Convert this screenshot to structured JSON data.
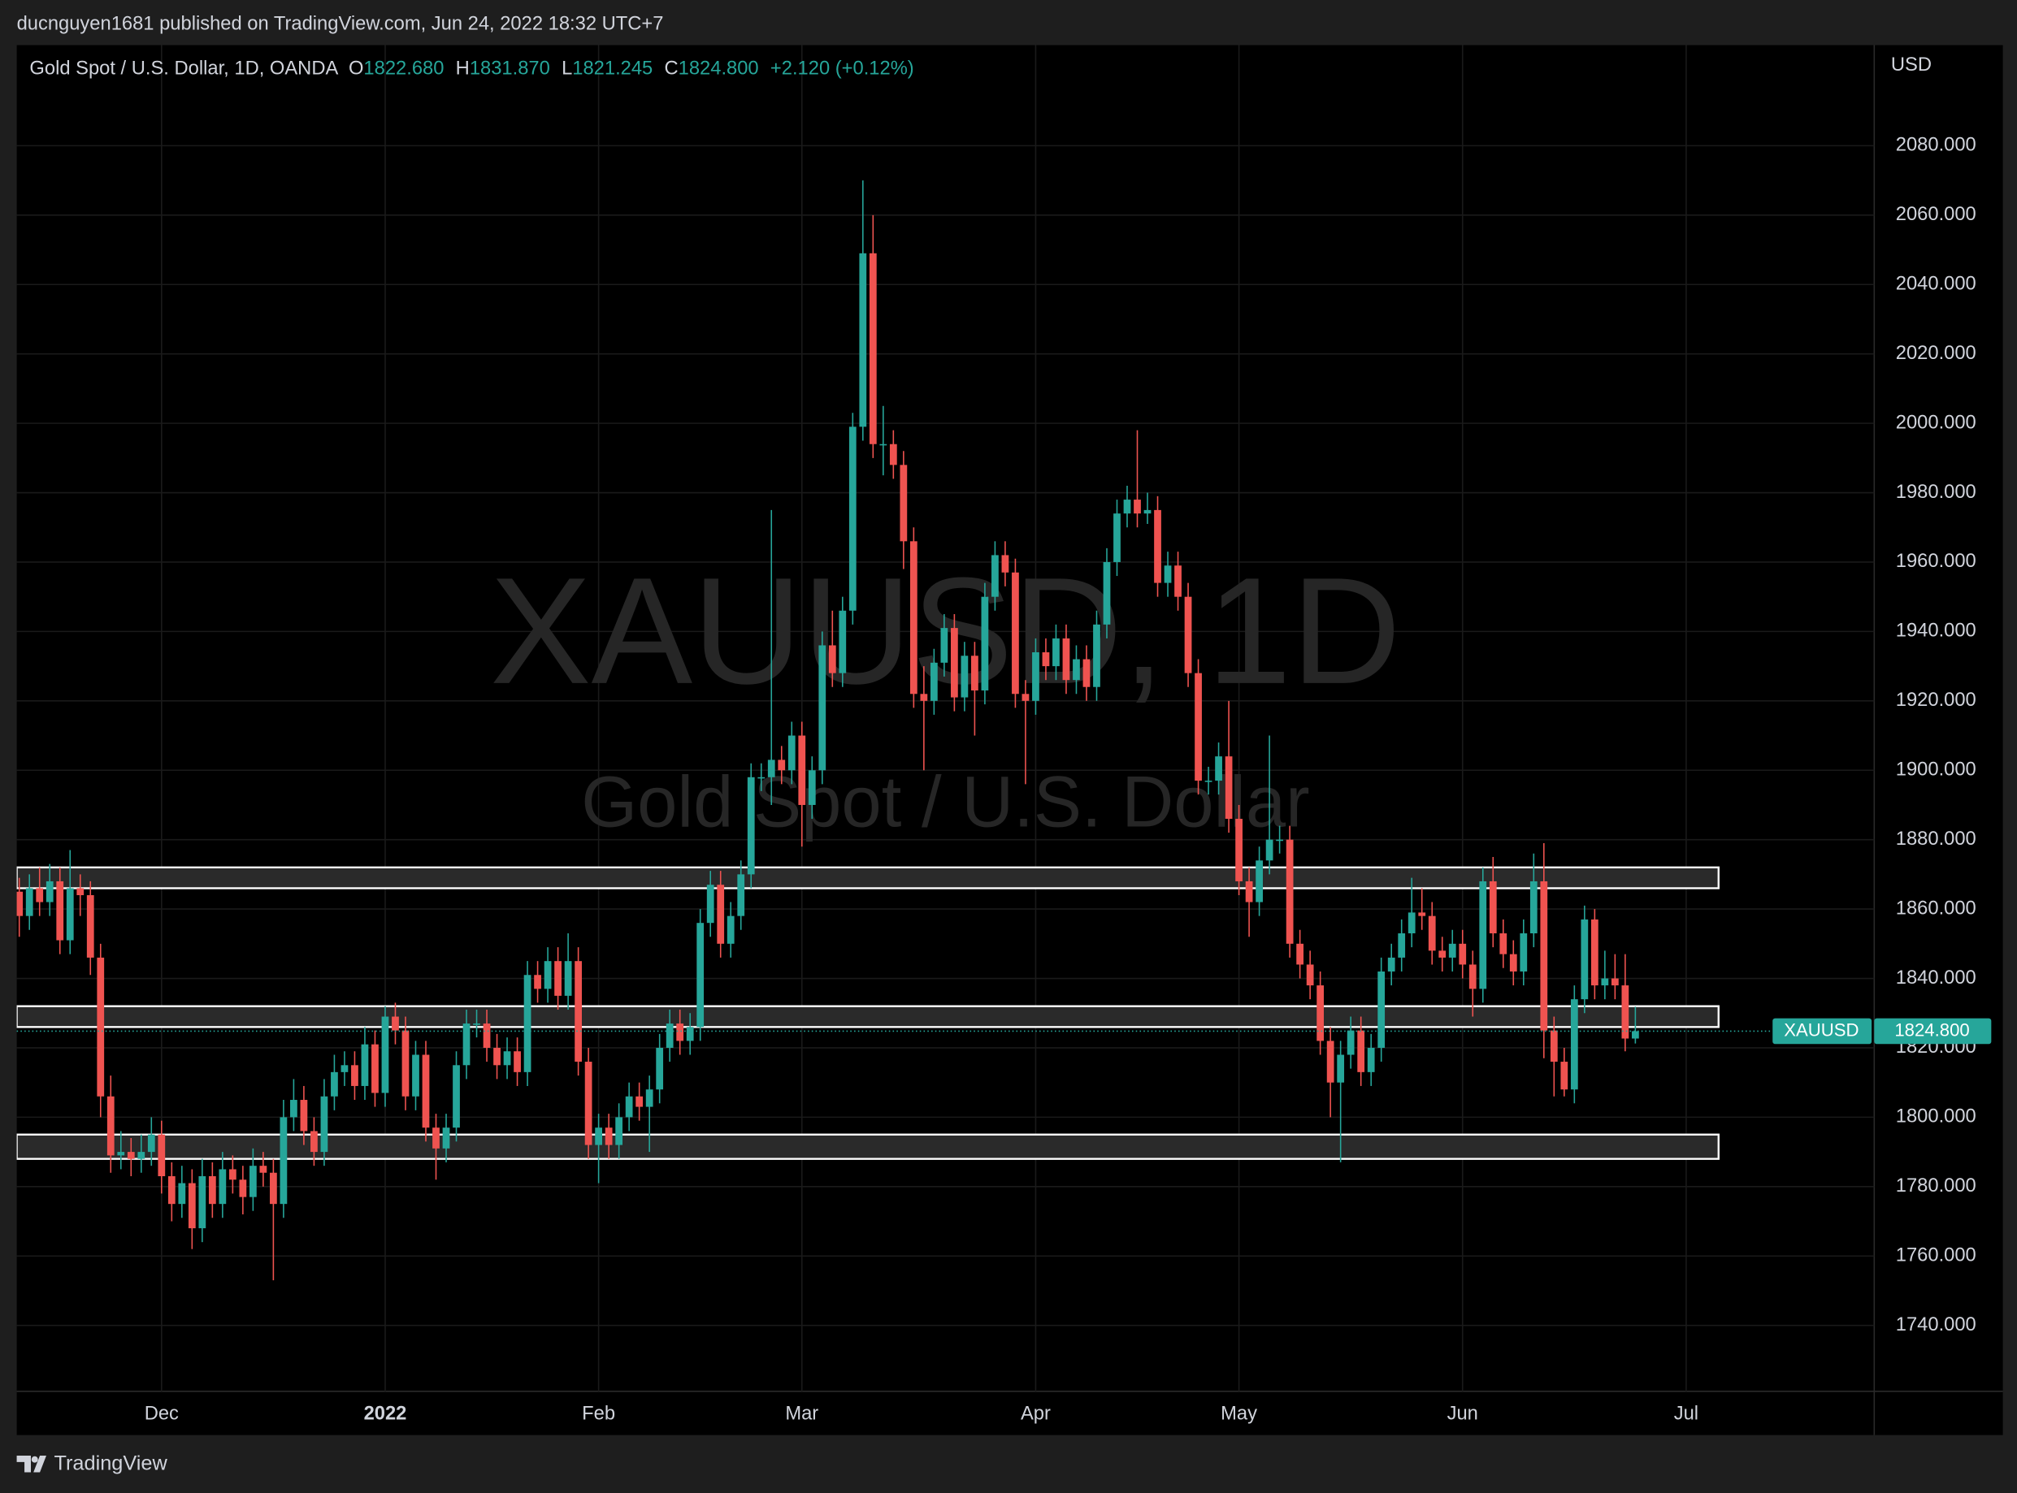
{
  "header": "ducnguyen1681 published on TradingView.com, Jun 24, 2022 18:32 UTC+7",
  "footer": "TradingView",
  "chart_data": {
    "type": "candlestick",
    "title": "Gold Spot / U.S. Dollar, 1D, OANDA",
    "watermark": "XAUUSD, 1D",
    "watermark_subtitle": "Gold Spot / U.S. Dollar",
    "legend_values": [
      {
        "key": "O",
        "value": "1822.680"
      },
      {
        "key": "H",
        "value": "1831.870"
      },
      {
        "key": "L",
        "value": "1821.245"
      },
      {
        "key": "C",
        "value": "1824.800"
      }
    ],
    "change": "+2.120 (+0.12%)",
    "y_axis_label": "USD",
    "up_color": "#26a69a",
    "down_color": "#ef5350",
    "grid": true,
    "ylim": [
      1721,
      2109
    ],
    "yticks": [
      {
        "value": 1740,
        "label": "1740.000"
      },
      {
        "value": 1760,
        "label": "1760.000"
      },
      {
        "value": 1780,
        "label": "1780.000"
      },
      {
        "value": 1800,
        "label": "1800.000"
      },
      {
        "value": 1820,
        "label": "1820.000"
      },
      {
        "value": 1840,
        "label": "1840.000"
      },
      {
        "value": 1860,
        "label": "1860.000"
      },
      {
        "value": 1880,
        "label": "1880.000"
      },
      {
        "value": 1900,
        "label": "1900.000"
      },
      {
        "value": 1920,
        "label": "1920.000"
      },
      {
        "value": 1940,
        "label": "1940.000"
      },
      {
        "value": 1960,
        "label": "1960.000"
      },
      {
        "value": 1980,
        "label": "1980.000"
      },
      {
        "value": 2000,
        "label": "2000.000"
      },
      {
        "value": 2020,
        "label": "2020.000"
      },
      {
        "value": 2040,
        "label": "2040.000"
      },
      {
        "value": 2060,
        "label": "2060.000"
      },
      {
        "value": 2080,
        "label": "2080.000"
      }
    ],
    "xlim": [
      -0.25,
      182.5
    ],
    "xticks": [
      {
        "value": 14,
        "label": "Dec"
      },
      {
        "value": 36,
        "label": "2022"
      },
      {
        "value": 57,
        "label": "Feb"
      },
      {
        "value": 77,
        "label": "Mar"
      },
      {
        "value": 100,
        "label": "Apr"
      },
      {
        "value": 120,
        "label": "May"
      },
      {
        "value": 142,
        "label": "Jun"
      },
      {
        "value": 164,
        "label": "Jul"
      }
    ],
    "last_price": {
      "value": 1824.8,
      "label": "1824.800"
    },
    "last_price_symbol": "XAUUSD",
    "zones": [
      {
        "low": 1866,
        "high": 1872
      },
      {
        "low": 1826,
        "high": 1832
      },
      {
        "low": 1788,
        "high": 1795
      }
    ],
    "ohlc": [
      [
        1865,
        1869,
        1852,
        1858
      ],
      [
        1858,
        1870,
        1854,
        1866
      ],
      [
        1866,
        1872,
        1858,
        1862
      ],
      [
        1862,
        1873,
        1858,
        1868
      ],
      [
        1868,
        1872,
        1847,
        1851
      ],
      [
        1851,
        1877,
        1847,
        1866
      ],
      [
        1866,
        1870,
        1858,
        1864
      ],
      [
        1864,
        1868,
        1841,
        1846
      ],
      [
        1846,
        1850,
        1800,
        1806
      ],
      [
        1806,
        1812,
        1784,
        1789
      ],
      [
        1789,
        1796,
        1785,
        1790
      ],
      [
        1790,
        1794,
        1783,
        1788
      ],
      [
        1788,
        1795,
        1784,
        1790
      ],
      [
        1790,
        1800,
        1786,
        1795
      ],
      [
        1795,
        1799,
        1778,
        1783
      ],
      [
        1783,
        1787,
        1770,
        1775
      ],
      [
        1775,
        1786,
        1771,
        1781
      ],
      [
        1781,
        1785,
        1762,
        1768
      ],
      [
        1768,
        1788,
        1764,
        1783
      ],
      [
        1783,
        1787,
        1771,
        1775
      ],
      [
        1775,
        1790,
        1771,
        1785
      ],
      [
        1785,
        1789,
        1778,
        1782
      ],
      [
        1782,
        1786,
        1772,
        1777
      ],
      [
        1777,
        1791,
        1773,
        1786
      ],
      [
        1786,
        1790,
        1780,
        1784
      ],
      [
        1784,
        1788,
        1753,
        1775
      ],
      [
        1775,
        1805,
        1771,
        1800
      ],
      [
        1800,
        1811,
        1796,
        1805
      ],
      [
        1805,
        1809,
        1792,
        1796
      ],
      [
        1796,
        1800,
        1786,
        1790
      ],
      [
        1790,
        1811,
        1786,
        1806
      ],
      [
        1806,
        1818,
        1802,
        1813
      ],
      [
        1813,
        1819,
        1809,
        1815
      ],
      [
        1815,
        1819,
        1805,
        1809
      ],
      [
        1809,
        1826,
        1805,
        1821
      ],
      [
        1821,
        1825,
        1803,
        1807
      ],
      [
        1807,
        1832,
        1803,
        1829
      ],
      [
        1829,
        1833,
        1821,
        1825
      ],
      [
        1825,
        1829,
        1802,
        1806
      ],
      [
        1806,
        1822,
        1802,
        1818
      ],
      [
        1818,
        1822,
        1793,
        1797
      ],
      [
        1797,
        1801,
        1782,
        1791
      ],
      [
        1791,
        1801,
        1787,
        1797
      ],
      [
        1797,
        1819,
        1793,
        1815
      ],
      [
        1815,
        1831,
        1811,
        1827
      ],
      [
        1827,
        1831,
        1823,
        1827
      ],
      [
        1827,
        1831,
        1816,
        1820
      ],
      [
        1820,
        1824,
        1811,
        1815
      ],
      [
        1815,
        1823,
        1811,
        1819
      ],
      [
        1819,
        1823,
        1809,
        1813
      ],
      [
        1813,
        1845,
        1809,
        1841
      ],
      [
        1841,
        1845,
        1833,
        1837
      ],
      [
        1837,
        1849,
        1833,
        1845
      ],
      [
        1845,
        1849,
        1831,
        1835
      ],
      [
        1835,
        1853,
        1831,
        1845
      ],
      [
        1845,
        1849,
        1812,
        1816
      ],
      [
        1816,
        1820,
        1788,
        1792
      ],
      [
        1792,
        1801,
        1781,
        1797
      ],
      [
        1797,
        1801,
        1788,
        1792
      ],
      [
        1792,
        1804,
        1788,
        1800
      ],
      [
        1800,
        1810,
        1796,
        1806
      ],
      [
        1806,
        1810,
        1799,
        1803
      ],
      [
        1803,
        1812,
        1790,
        1808
      ],
      [
        1808,
        1824,
        1804,
        1820
      ],
      [
        1820,
        1831,
        1816,
        1827
      ],
      [
        1827,
        1831,
        1818,
        1822
      ],
      [
        1822,
        1830,
        1818,
        1826
      ],
      [
        1826,
        1860,
        1822,
        1856
      ],
      [
        1856,
        1871,
        1852,
        1867
      ],
      [
        1867,
        1871,
        1846,
        1850
      ],
      [
        1850,
        1862,
        1846,
        1858
      ],
      [
        1858,
        1874,
        1854,
        1870
      ],
      [
        1870,
        1902,
        1866,
        1898
      ],
      [
        1898,
        1902,
        1894,
        1898
      ],
      [
        1898,
        1975,
        1890,
        1903
      ],
      [
        1903,
        1907,
        1896,
        1900
      ],
      [
        1900,
        1914,
        1896,
        1910
      ],
      [
        1910,
        1914,
        1878,
        1890
      ],
      [
        1890,
        1904,
        1886,
        1900
      ],
      [
        1900,
        1940,
        1896,
        1936
      ],
      [
        1936,
        1946,
        1924,
        1928
      ],
      [
        1928,
        1950,
        1924,
        1946
      ],
      [
        1946,
        2003,
        1942,
        1999
      ],
      [
        1999,
        2070,
        1995,
        2049
      ],
      [
        2049,
        2060,
        1990,
        1994
      ],
      [
        1994,
        2005,
        1985,
        1994
      ],
      [
        1994,
        1998,
        1984,
        1988
      ],
      [
        1988,
        1992,
        1958,
        1966
      ],
      [
        1966,
        1970,
        1918,
        1922
      ],
      [
        1922,
        1930,
        1900,
        1920
      ],
      [
        1920,
        1935,
        1916,
        1931
      ],
      [
        1931,
        1945,
        1927,
        1941
      ],
      [
        1941,
        1945,
        1917,
        1921
      ],
      [
        1921,
        1937,
        1917,
        1933
      ],
      [
        1933,
        1937,
        1910,
        1923
      ],
      [
        1923,
        1954,
        1919,
        1950
      ],
      [
        1950,
        1966,
        1946,
        1962
      ],
      [
        1962,
        1966,
        1953,
        1957
      ],
      [
        1957,
        1961,
        1918,
        1922
      ],
      [
        1922,
        1926,
        1896,
        1920
      ],
      [
        1920,
        1938,
        1916,
        1934
      ],
      [
        1934,
        1938,
        1926,
        1930
      ],
      [
        1930,
        1942,
        1926,
        1938
      ],
      [
        1938,
        1942,
        1922,
        1926
      ],
      [
        1926,
        1936,
        1922,
        1932
      ],
      [
        1932,
        1936,
        1920,
        1924
      ],
      [
        1924,
        1946,
        1920,
        1942
      ],
      [
        1942,
        1964,
        1938,
        1960
      ],
      [
        1960,
        1978,
        1956,
        1974
      ],
      [
        1974,
        1982,
        1970,
        1978
      ],
      [
        1978,
        1998,
        1970,
        1974
      ],
      [
        1974,
        1980,
        1971,
        1975
      ],
      [
        1975,
        1979,
        1950,
        1954
      ],
      [
        1954,
        1963,
        1950,
        1959
      ],
      [
        1959,
        1963,
        1946,
        1950
      ],
      [
        1950,
        1954,
        1924,
        1928
      ],
      [
        1928,
        1932,
        1893,
        1897
      ],
      [
        1897,
        1901,
        1893,
        1897
      ],
      [
        1897,
        1908,
        1893,
        1904
      ],
      [
        1904,
        1920,
        1882,
        1886
      ],
      [
        1886,
        1890,
        1864,
        1868
      ],
      [
        1868,
        1872,
        1852,
        1862
      ],
      [
        1862,
        1878,
        1858,
        1874
      ],
      [
        1874,
        1910,
        1870,
        1880
      ],
      [
        1880,
        1884,
        1876,
        1880
      ],
      [
        1880,
        1884,
        1846,
        1850
      ],
      [
        1850,
        1854,
        1840,
        1844
      ],
      [
        1844,
        1848,
        1834,
        1838
      ],
      [
        1838,
        1842,
        1818,
        1822
      ],
      [
        1822,
        1826,
        1800,
        1810
      ],
      [
        1810,
        1822,
        1787,
        1818
      ],
      [
        1818,
        1829,
        1814,
        1825
      ],
      [
        1825,
        1829,
        1809,
        1813
      ],
      [
        1813,
        1824,
        1809,
        1820
      ],
      [
        1820,
        1846,
        1816,
        1842
      ],
      [
        1842,
        1850,
        1838,
        1846
      ],
      [
        1846,
        1857,
        1842,
        1853
      ],
      [
        1853,
        1869,
        1849,
        1859
      ],
      [
        1859,
        1866,
        1854,
        1858
      ],
      [
        1858,
        1862,
        1844,
        1848
      ],
      [
        1848,
        1852,
        1842,
        1846
      ],
      [
        1846,
        1854,
        1842,
        1850
      ],
      [
        1850,
        1854,
        1840,
        1844
      ],
      [
        1844,
        1848,
        1829,
        1837
      ],
      [
        1837,
        1872,
        1833,
        1868
      ],
      [
        1868,
        1875,
        1849,
        1853
      ],
      [
        1853,
        1857,
        1843,
        1847
      ],
      [
        1847,
        1851,
        1838,
        1842
      ],
      [
        1842,
        1857,
        1838,
        1853
      ],
      [
        1853,
        1876,
        1849,
        1868
      ],
      [
        1868,
        1879,
        1817,
        1825
      ],
      [
        1825,
        1829,
        1806,
        1816
      ],
      [
        1816,
        1820,
        1806,
        1808
      ],
      [
        1808,
        1838,
        1804,
        1834
      ],
      [
        1834,
        1861,
        1830,
        1857
      ],
      [
        1857,
        1860,
        1834,
        1838
      ],
      [
        1838,
        1848,
        1834,
        1840
      ],
      [
        1840,
        1847,
        1834,
        1838
      ],
      [
        1838,
        1847,
        1819,
        1822.68
      ],
      [
        1822.68,
        1831.87,
        1821.245,
        1824.8
      ]
    ]
  }
}
